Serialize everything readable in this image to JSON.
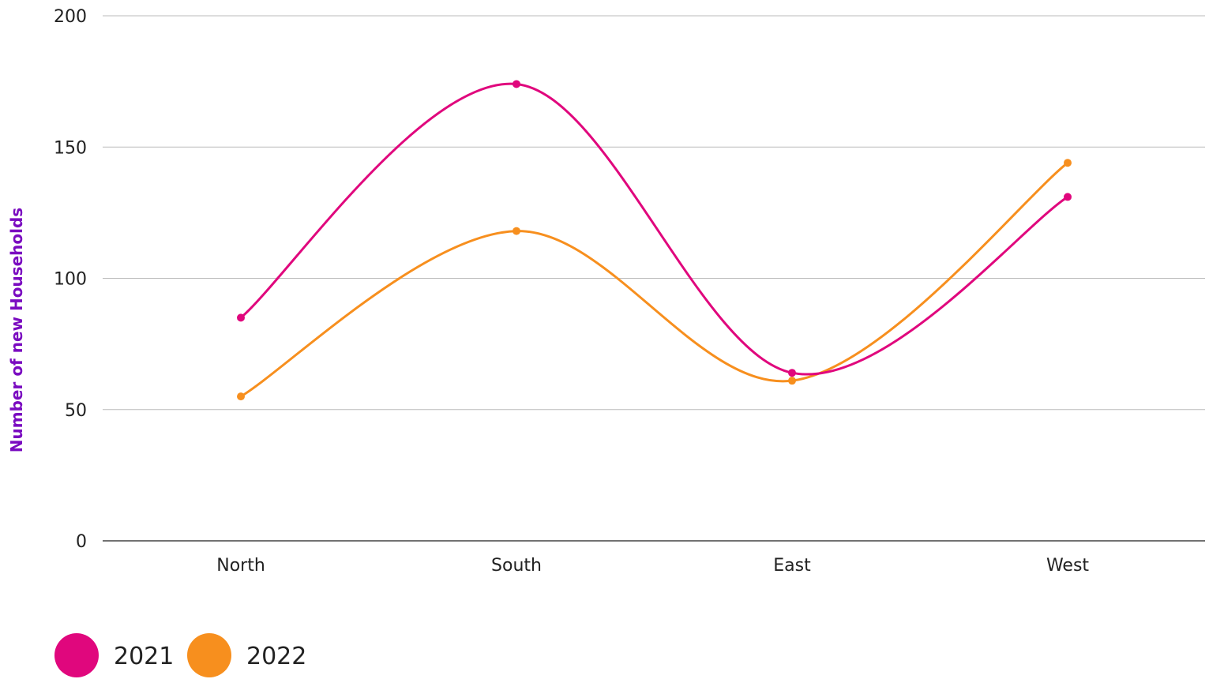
{
  "chart_data": {
    "type": "line",
    "smooth": true,
    "categories": [
      "North",
      "South",
      "East",
      "West"
    ],
    "series": [
      {
        "name": "2021",
        "color": "#e0077d",
        "values": [
          85,
          174,
          64,
          131
        ]
      },
      {
        "name": "2022",
        "color": "#f78f1e",
        "values": [
          55,
          118,
          61,
          144
        ]
      }
    ],
    "ylabel": "Number of  new Households",
    "ylabel_color": "#7a0bc0",
    "ylim": [
      0,
      200
    ],
    "yticks": [
      0,
      50,
      100,
      150,
      200
    ],
    "grid": true,
    "grid_color": "#bbbbbb",
    "axis_color": "#444444",
    "legend_position": "bottom-left"
  }
}
